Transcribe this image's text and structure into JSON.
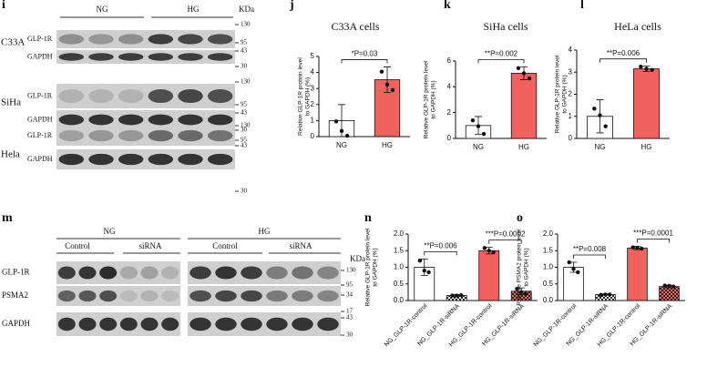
{
  "panels": {
    "i": {
      "label": "i",
      "groups": [
        "NG",
        "HG"
      ],
      "unit": "KDa",
      "blots": [
        {
          "cell": "C33A",
          "rows": [
            "GLP-1R",
            "GAPDH"
          ],
          "markers": [
            130,
            95,
            43,
            30
          ]
        },
        {
          "cell": "SiHa",
          "rows": [
            "GLP-1R",
            "GAPDH"
          ],
          "markers": [
            130,
            95,
            43,
            30
          ]
        },
        {
          "cell": "Hela",
          "rows": [
            "GLP-1R",
            "GAPDH"
          ],
          "markers": [
            130,
            95,
            43,
            30
          ]
        }
      ]
    },
    "m": {
      "label": "m",
      "groups": [
        "NG",
        "HG"
      ],
      "subgroups": [
        "Control",
        "siRNA",
        "Control",
        "siRNA"
      ],
      "rows": [
        "GLP-1R",
        "PSMA2",
        "GAPDH"
      ],
      "unit": "KDa",
      "markers": [
        130,
        95,
        34,
        17,
        43,
        30
      ]
    }
  },
  "chart_data": [
    {
      "type": "bar",
      "panel_label": "j",
      "title": "C33A cells",
      "ylabel": [
        "Relative GLP-1R protein level",
        "to GAPDH (%)"
      ],
      "categories": [
        "NG",
        "HG"
      ],
      "values": [
        1,
        3.55
      ],
      "errors": [
        1.0,
        0.8
      ],
      "points": [
        [
          0.95,
          0.35,
          0.05
        ],
        [
          4.05,
          3.25,
          2.9
        ]
      ],
      "colors": [
        "#ffffff",
        "#f0625d"
      ],
      "hatch": [
        false,
        false
      ],
      "ylim": [
        0,
        5
      ],
      "yticks": [
        0,
        1,
        2,
        3,
        4,
        5
      ],
      "annotations": [
        "*P=0.03"
      ]
    },
    {
      "type": "bar",
      "panel_label": "k",
      "title": "SiHa cells",
      "ylabel": [
        "Relative GLP-1R protein level",
        "to GAPDH (%)"
      ],
      "categories": [
        "NG",
        "HG"
      ],
      "values": [
        1,
        5.05
      ],
      "errors": [
        0.7,
        0.5
      ],
      "points": [
        [
          1.4,
          0.95,
          0.35
        ],
        [
          5.45,
          5.05,
          4.65
        ]
      ],
      "colors": [
        "#ffffff",
        "#f0625d"
      ],
      "hatch": [
        false,
        false
      ],
      "ylim": [
        0,
        6
      ],
      "yticks": [
        0,
        2,
        4,
        6
      ],
      "annotations": [
        "**P=0.002"
      ]
    },
    {
      "type": "bar",
      "panel_label": "l",
      "title": "HeLa cells",
      "ylabel": [
        "Relative GLP-1R protein level",
        "to GAPDH (%)"
      ],
      "categories": [
        "NG",
        "HG"
      ],
      "values": [
        1,
        3.15
      ],
      "errors": [
        0.75,
        0.12
      ],
      "points": [
        [
          1.35,
          1.05,
          0.55
        ],
        [
          3.25,
          3.15,
          3.1
        ]
      ],
      "colors": [
        "#ffffff",
        "#f0625d"
      ],
      "hatch": [
        false,
        false
      ],
      "ylim": [
        0,
        4
      ],
      "yticks": [
        0,
        1,
        2,
        3,
        4
      ],
      "annotations": [
        "**P=0.006"
      ]
    },
    {
      "type": "bar",
      "panel_label": "n",
      "ylabel": [
        "Relative GLP-1R protein level",
        "to GAPDH (%)"
      ],
      "categories": [
        "NG_GLP-1R-control",
        "NG_GLP-1R-siRNA",
        "HG_GLP-1R-control",
        "HG_GLP-1R-siRNA"
      ],
      "values": [
        1.0,
        0.15,
        1.5,
        0.28
      ],
      "errors": [
        0.25,
        0.03,
        0.1,
        0.1
      ],
      "points": [
        [
          1.2,
          0.9,
          0.85
        ],
        [
          0.15,
          0.15,
          0.16
        ],
        [
          1.58,
          1.5,
          1.45
        ],
        [
          0.35,
          0.25,
          0.2
        ]
      ],
      "colors": [
        "#ffffff",
        "#ffffff",
        "#f0625d",
        "#f0625d"
      ],
      "hatch": [
        false,
        true,
        false,
        true
      ],
      "ylim": [
        0,
        2
      ],
      "yticks": [
        {
          "value": 0,
          "label": "0.0"
        },
        0.5,
        {
          "value": 1,
          "label": "1.0"
        },
        1.5,
        {
          "value": 2,
          "label": "2.0"
        }
      ],
      "annotations": [
        "**P=0.006",
        "***P=0.0002"
      ]
    },
    {
      "type": "bar",
      "panel_label": "o",
      "ylabel": [
        "Relative PSMA2 protein level",
        "to GAPDH (%)"
      ],
      "categories": [
        "NG_GLP-1R-control",
        "NG_GLP-1R-siRNA",
        "HG_GLP-1R-control",
        "HG_GLP-1R-siRNA"
      ],
      "values": [
        1.0,
        0.18,
        1.58,
        0.42
      ],
      "errors": [
        0.15,
        0.02,
        0.05,
        0.04
      ],
      "points": [
        [
          1.15,
          0.95,
          0.85
        ],
        [
          0.17,
          0.18,
          0.18
        ],
        [
          1.6,
          1.58,
          1.56
        ],
        [
          0.45,
          0.44,
          0.42
        ]
      ],
      "colors": [
        "#ffffff",
        "#ffffff",
        "#f0625d",
        "#f0625d"
      ],
      "hatch": [
        false,
        true,
        false,
        true
      ],
      "ylim": [
        0,
        2
      ],
      "yticks": [
        {
          "value": 0,
          "label": "0.0"
        },
        0.5,
        {
          "value": 1,
          "label": "1.0"
        },
        1.5,
        {
          "value": 2,
          "label": "2.0"
        }
      ],
      "annotations": [
        "**P=0.008",
        "***P=0.0001"
      ]
    }
  ]
}
